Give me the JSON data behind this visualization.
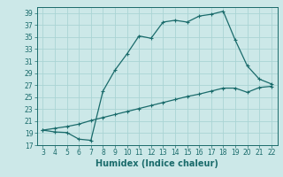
{
  "xlabel": "Humidex (Indice chaleur)",
  "background_color": "#cce8e8",
  "grid_color": "#aad4d4",
  "line_color": "#1a6b6b",
  "curve1_x": [
    3,
    4,
    5,
    6,
    7,
    8,
    9,
    10,
    11,
    12,
    13,
    14,
    15,
    16,
    17,
    18,
    19,
    20,
    21,
    22
  ],
  "curve1_y": [
    19.5,
    19.2,
    19.1,
    18.0,
    17.8,
    26.0,
    29.5,
    32.2,
    35.2,
    34.8,
    37.5,
    37.8,
    37.5,
    38.5,
    38.8,
    39.3,
    34.5,
    30.2,
    28.0,
    27.2
  ],
  "curve2_x": [
    3,
    4,
    5,
    6,
    7,
    8,
    9,
    10,
    11,
    12,
    13,
    14,
    15,
    16,
    17,
    18,
    19,
    20,
    21,
    22
  ],
  "curve2_y": [
    19.5,
    19.8,
    20.1,
    20.5,
    21.1,
    21.6,
    22.1,
    22.6,
    23.1,
    23.6,
    24.1,
    24.6,
    25.1,
    25.5,
    26.0,
    26.5,
    26.5,
    25.8,
    26.6,
    26.8
  ],
  "ylim": [
    17,
    40
  ],
  "xlim": [
    2.5,
    22.5
  ],
  "yticks": [
    17,
    19,
    21,
    23,
    25,
    27,
    29,
    31,
    33,
    35,
    37,
    39
  ],
  "xticks": [
    3,
    4,
    5,
    6,
    7,
    8,
    9,
    10,
    11,
    12,
    13,
    14,
    15,
    16,
    17,
    18,
    19,
    20,
    21,
    22
  ],
  "tick_fontsize": 5.5,
  "xlabel_fontsize": 7.0
}
